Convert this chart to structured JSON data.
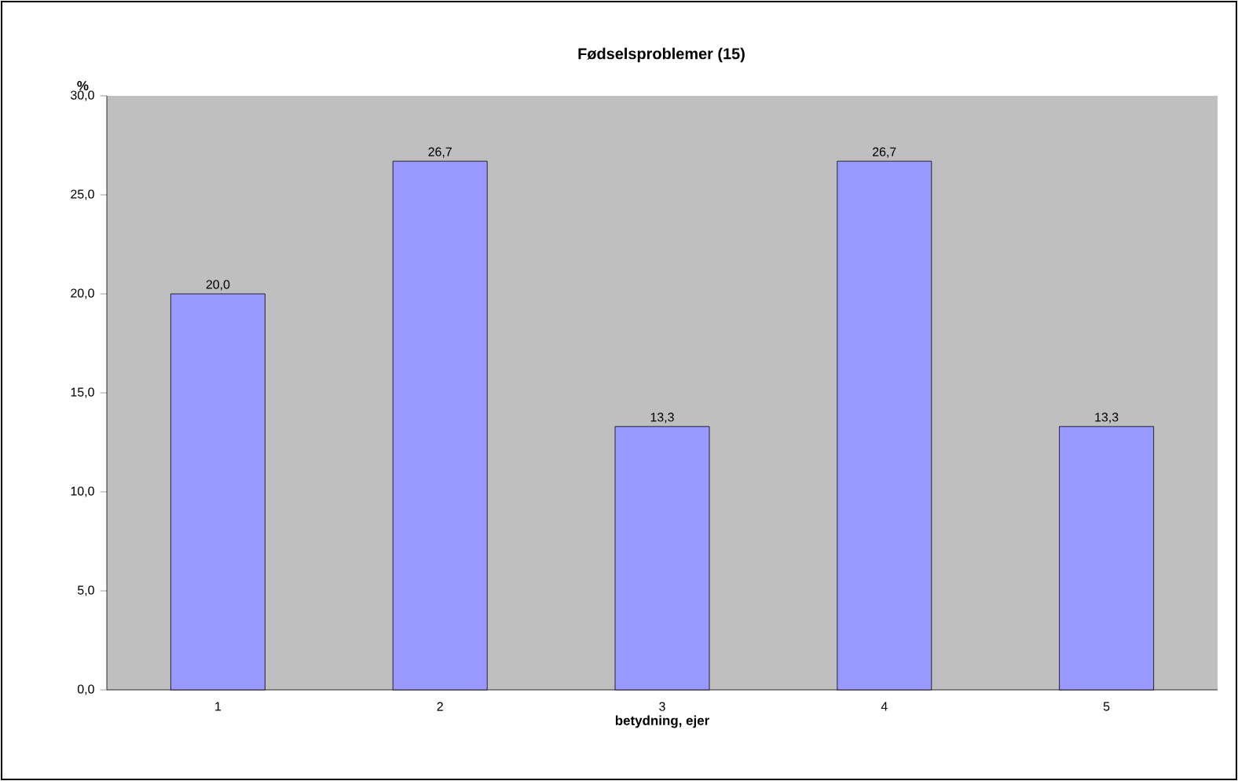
{
  "chart_data": {
    "type": "bar",
    "title": "Fødselsproblemer (15)",
    "xlabel": "betydning, ejer",
    "ylabel": "%",
    "categories": [
      "1",
      "2",
      "3",
      "4",
      "5"
    ],
    "values": [
      20.0,
      26.7,
      13.3,
      26.7,
      13.3
    ],
    "value_labels": [
      "20,0",
      "26,7",
      "13,3",
      "26,7",
      "13,3"
    ],
    "color": "#9999ff",
    "ylim": [
      0,
      30
    ],
    "yticks": [
      {
        "value": 0,
        "label": "0,0"
      },
      {
        "value": 5,
        "label": "5,0"
      },
      {
        "value": 10,
        "label": "10,0"
      },
      {
        "value": 15,
        "label": "15,0"
      },
      {
        "value": 20,
        "label": "20,0"
      },
      {
        "value": 25,
        "label": "25,0"
      },
      {
        "value": 30,
        "label": "30,0"
      }
    ],
    "grid": false
  }
}
